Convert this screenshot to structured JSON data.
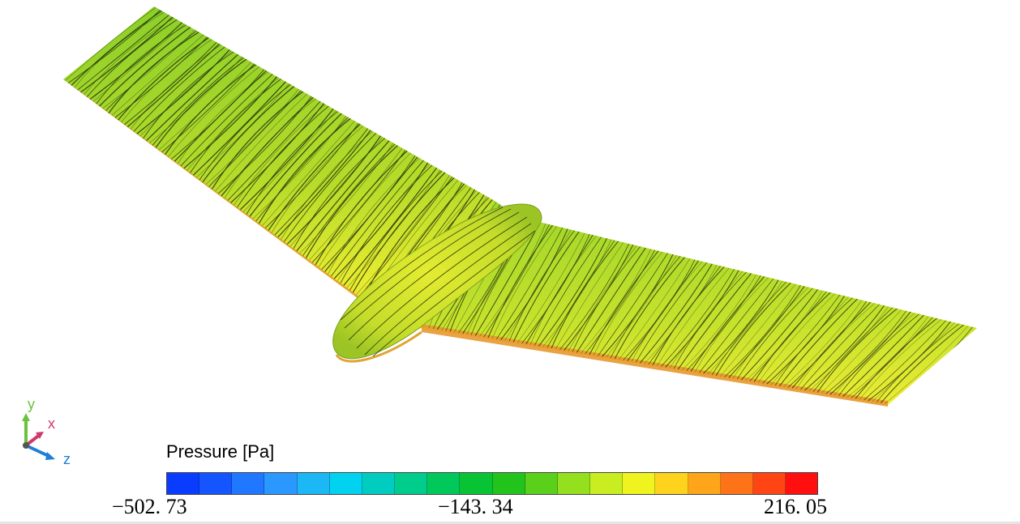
{
  "legend": {
    "title": "Pressure [Pa]",
    "min_label": "−502. 73",
    "mid_label": "−143. 34",
    "max_label": "216. 05",
    "colors": [
      "#0a3cff",
      "#1455ff",
      "#1f78ff",
      "#2a98ff",
      "#1cb8f5",
      "#00d2ef",
      "#00cdc0",
      "#00cc8c",
      "#00c85a",
      "#08c435",
      "#22c41c",
      "#5ad01a",
      "#95e01e",
      "#c8ee22",
      "#f0f41e",
      "#ffd21e",
      "#ffa51a",
      "#ff7318",
      "#ff4514",
      "#ff0f0f"
    ]
  },
  "axes": {
    "y_label": "y",
    "x_label": "x",
    "z_label": "z",
    "y_color": "#6cc23e",
    "x_color": "#d0386a",
    "z_color": "#1e7fd8"
  },
  "surface": {
    "base_color": "#c9e02a",
    "leading_edge_color": "#f0a030",
    "streamline_color": "#0d1a04"
  }
}
